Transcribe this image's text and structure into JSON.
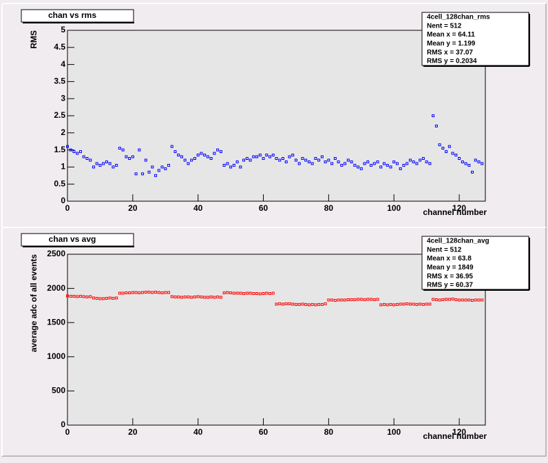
{
  "chart_data": [
    {
      "type": "scatter",
      "title": "chan vs rms",
      "xlabel": "channel number",
      "ylabel": "RMS",
      "color": "#0000ff",
      "stats": [
        "4cell_128chan_rms",
        "Nent = 512",
        "Mean x =  64.11",
        "Mean y =  1.199",
        "RMS x =  37.07",
        "RMS y  = 0.2034"
      ],
      "xlim": [
        0,
        128
      ],
      "xticks": [
        0,
        20,
        40,
        60,
        80,
        100,
        120
      ],
      "ylim": [
        0,
        5
      ],
      "yticks": [
        0,
        0.5,
        1,
        1.5,
        2,
        2.5,
        3,
        3.5,
        4,
        4.5,
        5
      ],
      "x": [
        0,
        1,
        2,
        3,
        4,
        5,
        6,
        7,
        8,
        9,
        10,
        11,
        12,
        13,
        14,
        15,
        16,
        17,
        18,
        19,
        20,
        21,
        22,
        23,
        24,
        25,
        26,
        27,
        28,
        29,
        30,
        31,
        32,
        33,
        34,
        35,
        36,
        37,
        38,
        39,
        40,
        41,
        42,
        43,
        44,
        45,
        46,
        47,
        48,
        49,
        50,
        51,
        52,
        53,
        54,
        55,
        56,
        57,
        58,
        59,
        60,
        61,
        62,
        63,
        64,
        65,
        66,
        67,
        68,
        69,
        70,
        71,
        72,
        73,
        74,
        75,
        76,
        77,
        78,
        79,
        80,
        81,
        82,
        83,
        84,
        85,
        86,
        87,
        88,
        89,
        90,
        91,
        92,
        93,
        94,
        95,
        96,
        97,
        98,
        99,
        100,
        101,
        102,
        103,
        104,
        105,
        106,
        107,
        108,
        109,
        110,
        111,
        112,
        113,
        114,
        115,
        116,
        117,
        118,
        119,
        120,
        121,
        122,
        123,
        124,
        125,
        126,
        127
      ],
      "values": [
        1.6,
        1.5,
        1.45,
        1.4,
        1.45,
        1.3,
        1.25,
        1.2,
        1.0,
        1.1,
        1.05,
        1.1,
        1.15,
        1.1,
        1.0,
        1.05,
        1.55,
        1.5,
        1.3,
        1.25,
        1.3,
        0.8,
        1.5,
        0.8,
        1.2,
        0.85,
        1.0,
        0.75,
        0.9,
        1.0,
        0.95,
        1.05,
        1.6,
        1.45,
        1.35,
        1.3,
        1.2,
        1.1,
        1.2,
        1.25,
        1.35,
        1.4,
        1.35,
        1.3,
        1.25,
        1.4,
        1.5,
        1.45,
        1.05,
        1.1,
        1.0,
        1.05,
        1.15,
        1.0,
        1.2,
        1.25,
        1.2,
        1.3,
        1.3,
        1.35,
        1.25,
        1.35,
        1.3,
        1.35,
        1.25,
        1.2,
        1.25,
        1.15,
        1.3,
        1.35,
        1.2,
        1.1,
        1.25,
        1.2,
        1.15,
        1.1,
        1.25,
        1.2,
        1.3,
        1.15,
        1.2,
        1.1,
        1.25,
        1.15,
        1.05,
        1.1,
        1.2,
        1.15,
        1.05,
        1.0,
        0.95,
        1.1,
        1.15,
        1.05,
        1.1,
        1.15,
        1.0,
        1.1,
        1.05,
        1.0,
        1.15,
        1.1,
        0.95,
        1.05,
        1.1,
        1.2,
        1.15,
        1.1,
        1.2,
        1.25,
        1.15,
        1.1,
        2.5,
        2.2,
        1.65,
        1.55,
        1.45,
        1.6,
        1.4,
        1.35,
        1.25,
        1.15,
        1.1,
        1.05,
        0.85,
        1.2,
        1.15,
        1.1
      ]
    },
    {
      "type": "scatter",
      "title": "chan vs avg",
      "xlabel": "channel number",
      "ylabel": "average adc of all events",
      "color": "#ff0000",
      "stats": [
        "4cell_128chan_avg",
        "Nent = 512",
        "Mean x =   63.8",
        "Mean y =   1849",
        "RMS x =  36.95",
        "RMS y  =  60.37"
      ],
      "xlim": [
        0,
        128
      ],
      "xticks": [
        0,
        20,
        40,
        60,
        80,
        100,
        120
      ],
      "ylim": [
        0,
        2500
      ],
      "yticks": [
        0,
        500,
        1000,
        1500,
        2000,
        2500
      ],
      "x": [
        0,
        1,
        2,
        3,
        4,
        5,
        6,
        7,
        8,
        9,
        10,
        11,
        12,
        13,
        14,
        15,
        16,
        17,
        18,
        19,
        20,
        21,
        22,
        23,
        24,
        25,
        26,
        27,
        28,
        29,
        30,
        31,
        32,
        33,
        34,
        35,
        36,
        37,
        38,
        39,
        40,
        41,
        42,
        43,
        44,
        45,
        46,
        47,
        48,
        49,
        50,
        51,
        52,
        53,
        54,
        55,
        56,
        57,
        58,
        59,
        60,
        61,
        62,
        63,
        64,
        65,
        66,
        67,
        68,
        69,
        70,
        71,
        72,
        73,
        74,
        75,
        76,
        77,
        78,
        79,
        80,
        81,
        82,
        83,
        84,
        85,
        86,
        87,
        88,
        89,
        90,
        91,
        92,
        93,
        94,
        95,
        96,
        97,
        98,
        99,
        100,
        101,
        102,
        103,
        104,
        105,
        106,
        107,
        108,
        109,
        110,
        111,
        112,
        113,
        114,
        115,
        116,
        117,
        118,
        119,
        120,
        121,
        122,
        123,
        124,
        125,
        126,
        127
      ],
      "values": [
        1890,
        1885,
        1885,
        1880,
        1885,
        1880,
        1875,
        1880,
        1860,
        1855,
        1850,
        1850,
        1855,
        1860,
        1855,
        1860,
        1930,
        1930,
        1935,
        1935,
        1940,
        1940,
        1935,
        1940,
        1945,
        1945,
        1940,
        1945,
        1940,
        1935,
        1940,
        1940,
        1880,
        1875,
        1875,
        1870,
        1875,
        1875,
        1870,
        1875,
        1880,
        1875,
        1870,
        1870,
        1875,
        1870,
        1875,
        1870,
        1935,
        1940,
        1935,
        1930,
        1930,
        1930,
        1925,
        1930,
        1930,
        1925,
        1925,
        1920,
        1925,
        1930,
        1925,
        1930,
        1770,
        1775,
        1770,
        1775,
        1775,
        1770,
        1765,
        1765,
        1770,
        1765,
        1760,
        1765,
        1760,
        1765,
        1765,
        1775,
        1830,
        1830,
        1825,
        1830,
        1830,
        1830,
        1835,
        1835,
        1835,
        1840,
        1840,
        1835,
        1840,
        1840,
        1835,
        1840,
        1760,
        1765,
        1760,
        1765,
        1760,
        1765,
        1770,
        1770,
        1775,
        1770,
        1770,
        1765,
        1770,
        1765,
        1770,
        1770,
        1840,
        1835,
        1830,
        1835,
        1840,
        1840,
        1845,
        1835,
        1830,
        1830,
        1830,
        1830,
        1825,
        1830,
        1830,
        1830
      ]
    }
  ]
}
